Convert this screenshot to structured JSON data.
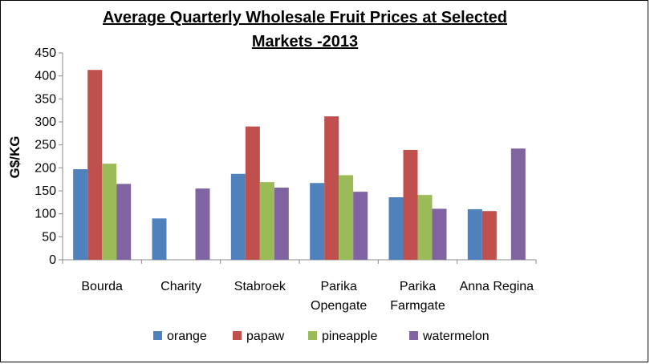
{
  "chart_data": {
    "type": "bar",
    "title_line1": "Average Quarterly Wholesale Fruit Prices at Selected",
    "title_line2": "Markets -2013",
    "ylabel": "G$/KG",
    "xlabel": "",
    "ylim": [
      0,
      450
    ],
    "yticks": [
      0,
      50,
      100,
      150,
      200,
      250,
      300,
      350,
      400,
      450
    ],
    "categories": [
      [
        "Bourda"
      ],
      [
        "Charity"
      ],
      [
        "Stabroek"
      ],
      [
        "Parika",
        "Opengate"
      ],
      [
        "Parika",
        "Farmgate"
      ],
      [
        "Anna Regina"
      ]
    ],
    "series": [
      {
        "name": "orange",
        "color": "#4f81bd",
        "values": [
          197,
          90,
          187,
          167,
          136,
          110
        ]
      },
      {
        "name": "papaw",
        "color": "#c0504d",
        "values": [
          413,
          null,
          290,
          312,
          239,
          106
        ]
      },
      {
        "name": "pineapple",
        "color": "#9bbb59",
        "values": [
          209,
          null,
          169,
          184,
          141,
          null
        ]
      },
      {
        "name": "watermelon",
        "color": "#8064a2",
        "values": [
          165,
          155,
          157,
          148,
          111,
          242
        ]
      }
    ],
    "grid": false,
    "legend_position": "bottom"
  }
}
